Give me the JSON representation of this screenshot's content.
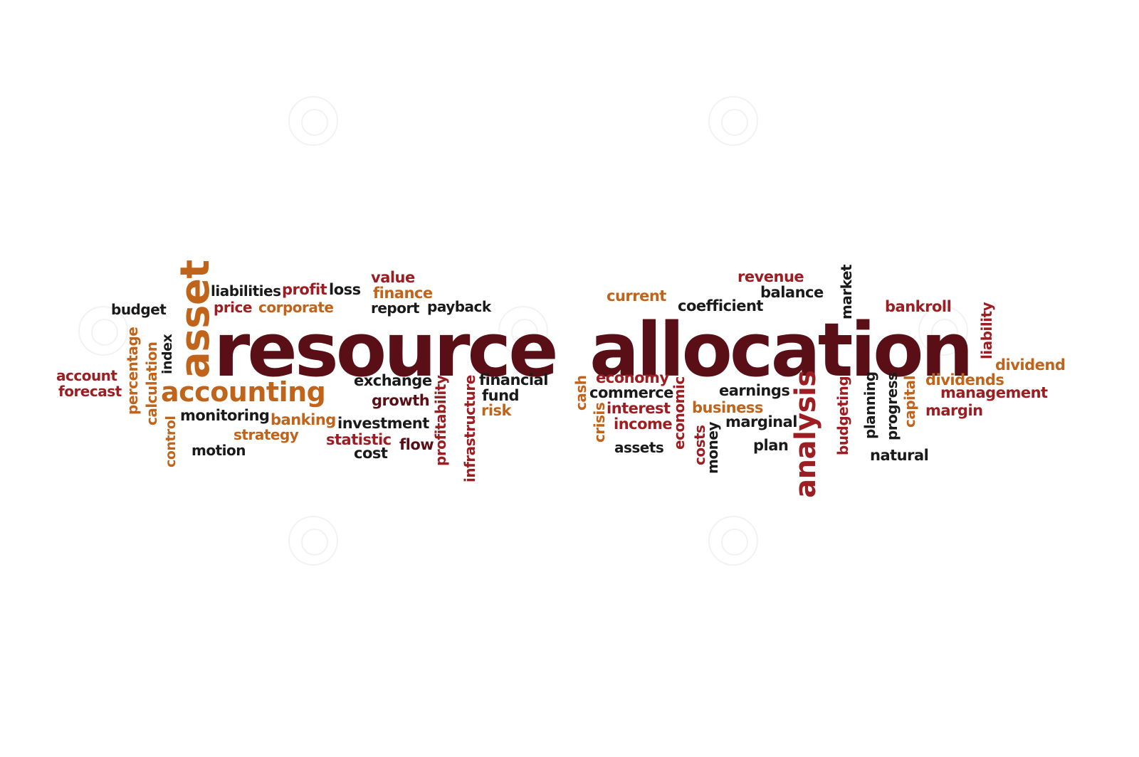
{
  "colors": {
    "dark": "#5a0f16",
    "red": "#9c1e22",
    "orange": "#c0641b",
    "black": "#1a1a1a"
  },
  "words": [
    {
      "id": "resource",
      "text": "resource",
      "size": 104,
      "color": "dark",
      "rotate": false
    },
    {
      "id": "allocation",
      "text": "allocation",
      "size": 104,
      "color": "dark",
      "rotate": false
    },
    {
      "id": "asset",
      "text": "asset",
      "size": 56,
      "color": "orange",
      "rotate": true
    },
    {
      "id": "accounting",
      "text": "accounting",
      "size": 38,
      "color": "orange",
      "rotate": false
    },
    {
      "id": "analysis",
      "text": "analysis",
      "size": 40,
      "color": "red",
      "rotate": true
    },
    {
      "id": "liabilities",
      "text": "liabilities",
      "size": 20,
      "color": "black",
      "rotate": false
    },
    {
      "id": "profit",
      "text": "profit",
      "size": 21,
      "color": "red",
      "rotate": false
    },
    {
      "id": "loss",
      "text": "loss",
      "size": 21,
      "color": "black",
      "rotate": false
    },
    {
      "id": "value",
      "text": "value",
      "size": 21,
      "color": "red",
      "rotate": false
    },
    {
      "id": "finance",
      "text": "finance",
      "size": 21,
      "color": "orange",
      "rotate": false
    },
    {
      "id": "price",
      "text": "price",
      "size": 20,
      "color": "red",
      "rotate": false
    },
    {
      "id": "corporate",
      "text": "corporate",
      "size": 20,
      "color": "orange",
      "rotate": false
    },
    {
      "id": "report",
      "text": "report",
      "size": 20,
      "color": "black",
      "rotate": false
    },
    {
      "id": "payback",
      "text": "payback",
      "size": 20,
      "color": "black",
      "rotate": false
    },
    {
      "id": "budget",
      "text": "budget",
      "size": 20,
      "color": "black",
      "rotate": false
    },
    {
      "id": "percentage",
      "text": "percentage",
      "size": 20,
      "color": "orange",
      "rotate": true
    },
    {
      "id": "calculation",
      "text": "calculation",
      "size": 20,
      "color": "orange",
      "rotate": true
    },
    {
      "id": "index",
      "text": "index",
      "size": 19,
      "color": "black",
      "rotate": true
    },
    {
      "id": "account",
      "text": "account",
      "size": 20,
      "color": "red",
      "rotate": false
    },
    {
      "id": "forecast",
      "text": "forecast",
      "size": 20,
      "color": "red",
      "rotate": false
    },
    {
      "id": "control",
      "text": "control",
      "size": 19,
      "color": "orange",
      "rotate": true
    },
    {
      "id": "monitoring",
      "text": "monitoring",
      "size": 21,
      "color": "black",
      "rotate": false
    },
    {
      "id": "banking",
      "text": "banking",
      "size": 21,
      "color": "orange",
      "rotate": false
    },
    {
      "id": "strategy",
      "text": "strategy",
      "size": 20,
      "color": "orange",
      "rotate": false
    },
    {
      "id": "motion",
      "text": "motion",
      "size": 20,
      "color": "black",
      "rotate": false
    },
    {
      "id": "exchange",
      "text": "exchange",
      "size": 21,
      "color": "black",
      "rotate": false
    },
    {
      "id": "growth",
      "text": "growth",
      "size": 21,
      "color": "dark",
      "rotate": false
    },
    {
      "id": "investment",
      "text": "investment",
      "size": 21,
      "color": "black",
      "rotate": false
    },
    {
      "id": "statistic",
      "text": "statistic",
      "size": 21,
      "color": "red",
      "rotate": false
    },
    {
      "id": "flow",
      "text": "flow",
      "size": 21,
      "color": "dark",
      "rotate": false
    },
    {
      "id": "cost",
      "text": "cost",
      "size": 21,
      "color": "black",
      "rotate": false
    },
    {
      "id": "profitability",
      "text": "profitability",
      "size": 20,
      "color": "red",
      "rotate": true
    },
    {
      "id": "infrastructure",
      "text": "infrastructure",
      "size": 20,
      "color": "red",
      "rotate": true
    },
    {
      "id": "financial",
      "text": "financial",
      "size": 21,
      "color": "black",
      "rotate": false
    },
    {
      "id": "fund",
      "text": "fund",
      "size": 21,
      "color": "black",
      "rotate": false
    },
    {
      "id": "risk",
      "text": "risk",
      "size": 21,
      "color": "orange",
      "rotate": false
    },
    {
      "id": "cash",
      "text": "cash",
      "size": 20,
      "color": "orange",
      "rotate": true
    },
    {
      "id": "crisis",
      "text": "crisis",
      "size": 20,
      "color": "orange",
      "rotate": true
    },
    {
      "id": "current",
      "text": "current",
      "size": 21,
      "color": "orange",
      "rotate": false
    },
    {
      "id": "economy",
      "text": "economy",
      "size": 21,
      "color": "red",
      "rotate": false
    },
    {
      "id": "commerce",
      "text": "commerce",
      "size": 21,
      "color": "black",
      "rotate": false
    },
    {
      "id": "interest",
      "text": "interest",
      "size": 21,
      "color": "red",
      "rotate": false
    },
    {
      "id": "income",
      "text": "income",
      "size": 21,
      "color": "red",
      "rotate": false
    },
    {
      "id": "assets",
      "text": "assets",
      "size": 20,
      "color": "black",
      "rotate": false
    },
    {
      "id": "economic",
      "text": "economic",
      "size": 20,
      "color": "red",
      "rotate": true
    },
    {
      "id": "costs",
      "text": "costs",
      "size": 20,
      "color": "red",
      "rotate": true
    },
    {
      "id": "money",
      "text": "money",
      "size": 20,
      "color": "black",
      "rotate": true
    },
    {
      "id": "coefficient",
      "text": "coefficient",
      "size": 21,
      "color": "black",
      "rotate": false
    },
    {
      "id": "revenue",
      "text": "revenue",
      "size": 21,
      "color": "red",
      "rotate": false
    },
    {
      "id": "balance",
      "text": "balance",
      "size": 21,
      "color": "black",
      "rotate": false
    },
    {
      "id": "earnings",
      "text": "earnings",
      "size": 21,
      "color": "black",
      "rotate": false
    },
    {
      "id": "business",
      "text": "business",
      "size": 21,
      "color": "orange",
      "rotate": false
    },
    {
      "id": "marginal",
      "text": "marginal",
      "size": 21,
      "color": "black",
      "rotate": false
    },
    {
      "id": "plan",
      "text": "plan",
      "size": 21,
      "color": "black",
      "rotate": false
    },
    {
      "id": "market",
      "text": "market",
      "size": 20,
      "color": "black",
      "rotate": true
    },
    {
      "id": "budgeting",
      "text": "budgeting",
      "size": 20,
      "color": "red",
      "rotate": true
    },
    {
      "id": "planning",
      "text": "planning",
      "size": 20,
      "color": "black",
      "rotate": true
    },
    {
      "id": "progress",
      "text": "progress",
      "size": 20,
      "color": "black",
      "rotate": true
    },
    {
      "id": "capital",
      "text": "capital",
      "size": 20,
      "color": "orange",
      "rotate": true
    },
    {
      "id": "natural",
      "text": "natural",
      "size": 21,
      "color": "black",
      "rotate": false
    },
    {
      "id": "bankroll",
      "text": "bankroll",
      "size": 21,
      "color": "red",
      "rotate": false
    },
    {
      "id": "liability",
      "text": "liability",
      "size": 20,
      "color": "red",
      "rotate": true
    },
    {
      "id": "dividend",
      "text": "dividend",
      "size": 21,
      "color": "orange",
      "rotate": false
    },
    {
      "id": "dividends",
      "text": "dividends",
      "size": 21,
      "color": "orange",
      "rotate": false
    },
    {
      "id": "management",
      "text": "management",
      "size": 21,
      "color": "red",
      "rotate": false
    },
    {
      "id": "margin",
      "text": "margin",
      "size": 21,
      "color": "red",
      "rotate": false
    }
  ]
}
